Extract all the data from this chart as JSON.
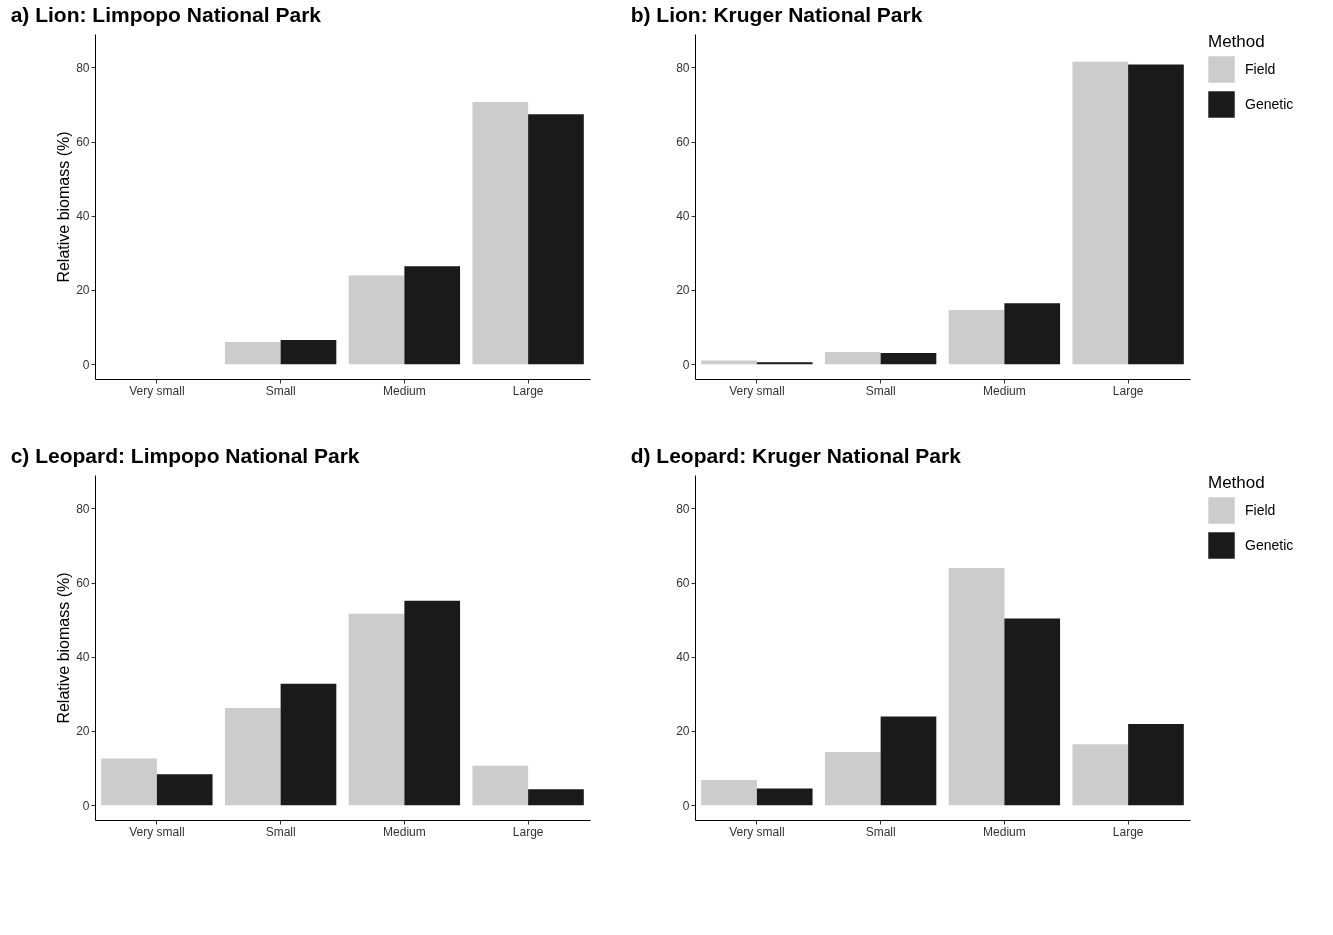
{
  "chart_data": [
    {
      "type": "bar",
      "title": "a) Lion: Limpopo National Park",
      "ylabel": "Relative biomass (%)",
      "categories": [
        "Very small",
        "Small",
        "Medium",
        "Large"
      ],
      "series": [
        {
          "color": "#cccccc",
          "values": [
            0,
            6.0,
            23.9,
            70.7
          ]
        },
        {
          "color": "#1a1a1a",
          "values": [
            0,
            6.5,
            26.4,
            67.4
          ]
        }
      ],
      "ylim": [
        -4,
        89
      ],
      "yticks": [
        0,
        20,
        40,
        60,
        80
      ],
      "legend": false
    },
    {
      "type": "bar",
      "title": "b) Lion: Kruger National Park",
      "legend_title": "Method",
      "categories": [
        "Very small",
        "Small",
        "Medium",
        "Large"
      ],
      "series": [
        {
          "name": "Field",
          "color": "#cccccc",
          "values": [
            1.0,
            3.3,
            14.6,
            81.5
          ]
        },
        {
          "name": "Genetic",
          "color": "#1a1a1a",
          "values": [
            0.5,
            3.0,
            16.4,
            80.8
          ]
        }
      ],
      "ylim": [
        -4,
        89
      ],
      "yticks": [
        0,
        20,
        40,
        60,
        80
      ],
      "legend": "right"
    },
    {
      "type": "bar",
      "title": "c) Leopard: Limpopo National Park",
      "ylabel": "Relative biomass (%)",
      "categories": [
        "Very small",
        "Small",
        "Medium",
        "Large"
      ],
      "series": [
        {
          "color": "#cccccc",
          "values": [
            12.6,
            26.2,
            51.6,
            10.6
          ]
        },
        {
          "color": "#1a1a1a",
          "values": [
            8.3,
            32.7,
            55.1,
            4.3
          ]
        }
      ],
      "ylim": [
        -4,
        89
      ],
      "yticks": [
        0,
        20,
        40,
        60,
        80
      ],
      "legend": false
    },
    {
      "type": "bar",
      "title": "d) Leopard: Kruger National Park",
      "legend_title": "Method",
      "categories": [
        "Very small",
        "Small",
        "Medium",
        "Large"
      ],
      "series": [
        {
          "name": "Field",
          "color": "#cccccc",
          "values": [
            6.8,
            14.3,
            63.9,
            16.4
          ]
        },
        {
          "name": "Genetic",
          "color": "#1a1a1a",
          "values": [
            4.5,
            23.9,
            50.3,
            21.9
          ]
        }
      ],
      "ylim": [
        -4,
        89
      ],
      "yticks": [
        0,
        20,
        40,
        60,
        80
      ],
      "legend": "right"
    }
  ]
}
